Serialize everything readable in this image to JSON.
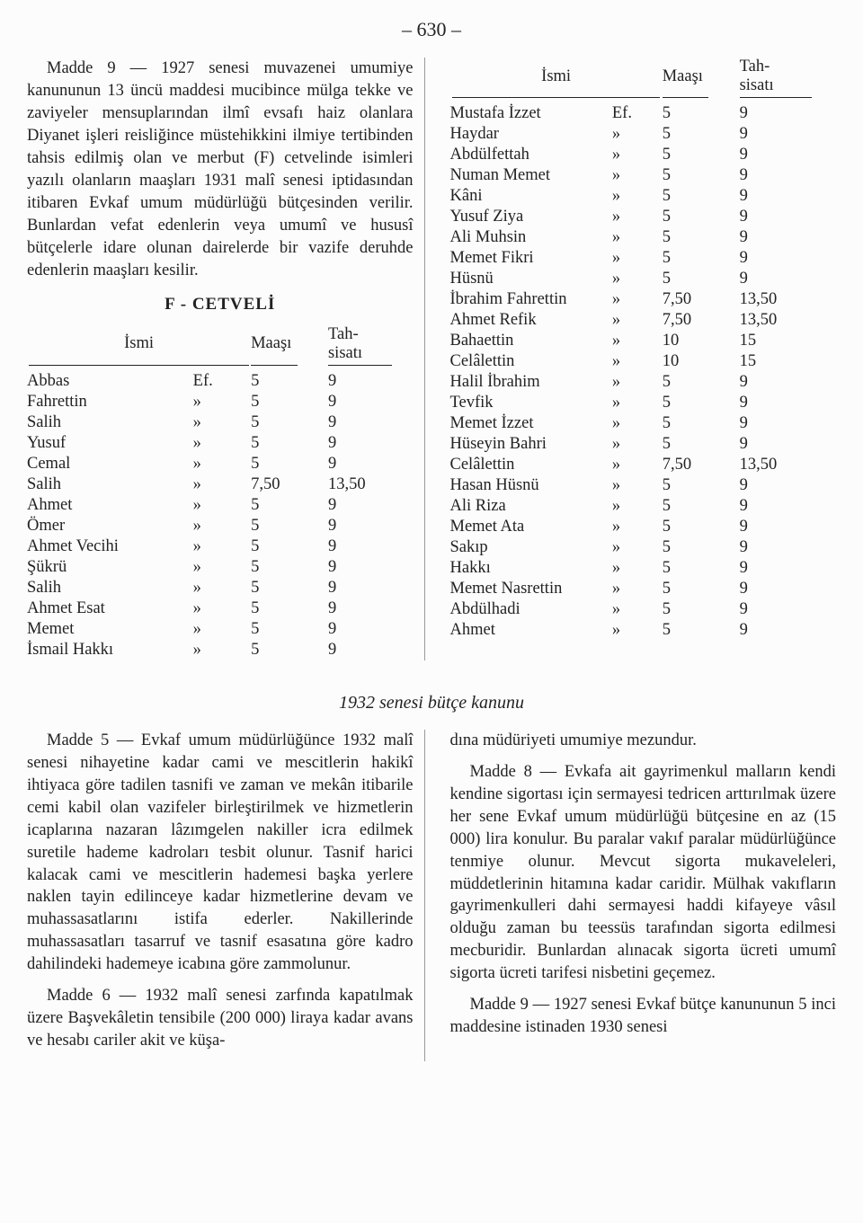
{
  "page_number": "– 630 –",
  "upper": {
    "left": {
      "para1": "Madde 9 — 1927 senesi muvazenei umumiye kanununun 13 üncü maddesi mucibince mülga tekke ve zaviyeler mensuplarından ilmî evsafı haiz olanlara Diyanet işleri reisliğince müstehikkini ilmiye tertibinden tahsis edilmiş olan ve merbut (F) cetvelinde isimleri yazılı olanların maaşları 1931 malî senesi iptidasından itibaren Evkaf umum müdürlüğü bütçesinden verilir. Bunlardan vefat edenlerin veya umumî ve hususî bütçelerle idare olunan dairelerde bir vazife deruhde edenlerin maaşları kesilir.",
      "heading": "F - CETVELİ",
      "headers": {
        "isim": "İsmi",
        "maas": "Maaşı",
        "tahsisati": "Tah-\nsisatı"
      },
      "rows": [
        [
          "Abbas",
          "Ef.",
          "5",
          "9"
        ],
        [
          "Fahrettin",
          "»",
          "5",
          "9"
        ],
        [
          "Salih",
          "»",
          "5",
          "9"
        ],
        [
          "Yusuf",
          "»",
          "5",
          "9"
        ],
        [
          "Cemal",
          "»",
          "5",
          "9"
        ],
        [
          "Salih",
          "»",
          "7,50",
          "13,50"
        ],
        [
          "Ahmet",
          "»",
          "5",
          "9"
        ],
        [
          "Ömer",
          "»",
          "5",
          "9"
        ],
        [
          "Ahmet Vecihi",
          "»",
          "5",
          "9"
        ],
        [
          "Şükrü",
          "»",
          "5",
          "9"
        ],
        [
          "Salih",
          "»",
          "5",
          "9"
        ],
        [
          "Ahmet Esat",
          "»",
          "5",
          "9"
        ],
        [
          "Memet",
          "»",
          "5",
          "9"
        ],
        [
          "İsmail Hakkı",
          "»",
          "5",
          "9"
        ]
      ]
    },
    "right": {
      "headers": {
        "isim": "İsmi",
        "maas": "Maaşı",
        "tahsisati": "Tah-\nsisatı"
      },
      "rows": [
        [
          "Mustafa İzzet",
          "Ef.",
          "5",
          "9"
        ],
        [
          "Haydar",
          "»",
          "5",
          "9"
        ],
        [
          "Abdülfettah",
          "»",
          "5",
          "9"
        ],
        [
          "Numan Memet",
          "»",
          "5",
          "9"
        ],
        [
          "Kâni",
          "»",
          "5",
          "9"
        ],
        [
          "Yusuf Ziya",
          "»",
          "5",
          "9"
        ],
        [
          "Ali Muhsin",
          "»",
          "5",
          "9"
        ],
        [
          "Memet Fikri",
          "»",
          "5",
          "9"
        ],
        [
          "Hüsnü",
          "»",
          "5",
          "9"
        ],
        [
          "İbrahim Fahrettin",
          "»",
          "7,50",
          "13,50"
        ],
        [
          "Ahmet Refik",
          "»",
          "7,50",
          "13,50"
        ],
        [
          "Bahaettin",
          "»",
          "10",
          "15"
        ],
        [
          "Celâlettin",
          "»",
          "10",
          "15"
        ],
        [
          "Halil İbrahim",
          "»",
          "5",
          "9"
        ],
        [
          "Tevfik",
          "»",
          "5",
          "9"
        ],
        [
          "Memet İzzet",
          "»",
          "5",
          "9"
        ],
        [
          "Hüseyin Bahri",
          "»",
          "5",
          "9"
        ],
        [
          "Celâlettin",
          "»",
          "7,50",
          "13,50"
        ],
        [
          "Hasan Hüsnü",
          "»",
          "5",
          "9"
        ],
        [
          "Ali Riza",
          "»",
          "5",
          "9"
        ],
        [
          "Memet Ata",
          "»",
          "5",
          "9"
        ],
        [
          "Sakıp",
          "»",
          "5",
          "9"
        ],
        [
          "Hakkı",
          "»",
          "5",
          "9"
        ],
        [
          "Memet Nasrettin",
          "»",
          "5",
          "9"
        ],
        [
          "Abdülhadi",
          "»",
          "5",
          "9"
        ],
        [
          "Ahmet",
          "»",
          "5",
          "9"
        ]
      ]
    }
  },
  "subtitle": "1932 senesi bütçe kanunu",
  "lower": {
    "left": {
      "para1": "Madde 5 — Evkaf umum müdürlüğünce 1932 malî senesi nihayetine kadar cami ve mescitlerin hakikî ihtiyaca göre tadilen tasnifi ve zaman ve mekân itibarile cemi kabil olan vazifeler birleştirilmek ve hizmetlerin icaplarına nazaran lâzımgelen nakiller icra edilmek suretile hademe kadroları tesbit olunur. Tasnif harici kalacak cami ve mescitlerin hademesi başka yerlere naklen tayin edilinceye kadar hizmetlerine devam ve muhassasatlarını istifa ederler. Nakillerinde muhassasatları tasarruf ve tasnif esasatına göre kadro dahilindeki hademeye icabına göre zammolunur.",
      "para2": "Madde 6 — 1932 malî senesi zarfında kapatılmak üzere Başvekâletin tensibile (200 000) liraya kadar avans ve hesabı cariler akit ve küşa-"
    },
    "right": {
      "para1": "dına müdüriyeti umumiye mezundur.",
      "para2": "Madde 8 — Evkafa ait gayrimenkul malların kendi kendine sigortası için sermayesi tedricen arttırılmak üzere her sene Evkaf umum müdürlüğü bütçesine en az (15 000) lira konulur. Bu paralar vakıf paralar müdürlüğünce tenmiye olunur. Mevcut sigorta mukaveleleri, müddetlerinin hitamına kadar caridir. Mülhak vakıfların gayrimenkulleri dahi sermayesi haddi kifayeye vâsıl olduğu zaman bu teessüs tarafından sigorta edilmesi mecburidir. Bunlardan alınacak sigorta ücreti umumî sigorta ücreti tarifesi nisbetini geçemez.",
      "para3": "Madde 9 — 1927 senesi Evkaf bütçe kanununun 5 inci maddesine istinaden 1930 senesi"
    }
  }
}
